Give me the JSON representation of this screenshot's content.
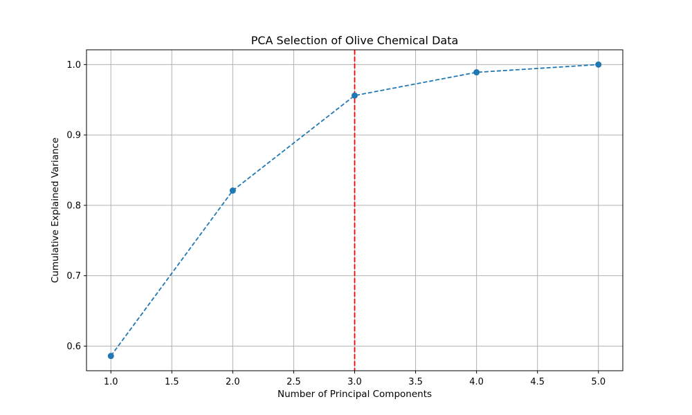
{
  "chart_data": {
    "type": "line",
    "title": "PCA Selection of Olive Chemical Data",
    "xlabel": "Number of Principal Components",
    "ylabel": "Cumulative Explained Variance",
    "x": [
      1,
      2,
      3,
      4,
      5
    ],
    "series": [
      {
        "values": [
          0.586,
          0.821,
          0.956,
          0.989,
          1.0
        ],
        "color": "#1f77b4",
        "line_style": "dashed",
        "marker": "circle"
      }
    ],
    "vertical_line": {
      "x": 3,
      "color": "#ff0000",
      "line_style": "dashed"
    },
    "xlim": [
      0.8,
      5.2
    ],
    "ylim": [
      0.565,
      1.021
    ],
    "xticks": [
      1.0,
      1.5,
      2.0,
      2.5,
      3.0,
      3.5,
      4.0,
      4.5,
      5.0
    ],
    "xtick_labels": [
      "1.0",
      "1.5",
      "2.0",
      "2.5",
      "3.0",
      "3.5",
      "4.0",
      "4.5",
      "5.0"
    ],
    "yticks": [
      0.6,
      0.7,
      0.8,
      0.9,
      1.0
    ],
    "ytick_labels": [
      "0.6",
      "0.7",
      "0.8",
      "0.9",
      "1.0"
    ],
    "grid": true,
    "grid_color": "#b0b0b0"
  }
}
